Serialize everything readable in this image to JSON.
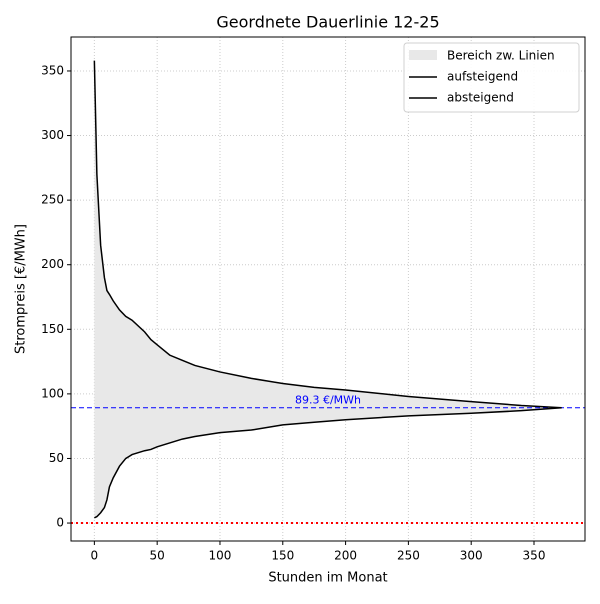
{
  "chart_data": {
    "type": "line",
    "title": "Geordnete Dauerlinie 12-25",
    "xlabel": "Stunden im Monat",
    "ylabel": "Strompreis [€/MWh]",
    "x": [
      0,
      2,
      5,
      8,
      10,
      12,
      15,
      20,
      25,
      30,
      40,
      45,
      50,
      60,
      70,
      80,
      100,
      125,
      150,
      175,
      200,
      250,
      300,
      340,
      372
    ],
    "series": [
      {
        "name": "aufsteigend",
        "color": "#000000",
        "values": [
          4,
          5,
          8,
          12,
          18,
          28,
          35,
          44,
          50,
          53,
          56,
          57,
          59,
          62,
          65,
          67,
          70,
          72,
          76,
          78,
          80,
          83,
          85,
          87,
          89.3
        ]
      },
      {
        "name": "absteigend",
        "color": "#000000",
        "values": [
          358,
          270,
          215,
          190,
          180,
          177,
          172,
          165,
          160,
          157,
          148,
          142,
          138,
          130,
          126,
          122,
          117,
          112,
          108,
          105,
          103,
          98,
          94,
          91,
          89.3
        ]
      }
    ],
    "fill_between": {
      "name": "Bereich zw. Linien",
      "color": "#e8e8e8"
    },
    "hlines": [
      {
        "value": 89.3,
        "label": "89.3 €/MWh",
        "color": "#0000ff",
        "style": "dashed"
      },
      {
        "value": 0,
        "color": "#ff0000",
        "style": "dotted"
      }
    ],
    "xlim": [
      -18.6,
      390.6
    ],
    "xticks": [
      0,
      50,
      100,
      150,
      200,
      250,
      300,
      350
    ],
    "ylim": [
      -13.9,
      376.3
    ],
    "yticks": [
      0,
      50,
      100,
      150,
      200,
      250,
      300,
      350
    ],
    "grid": true,
    "legend": "upper right"
  }
}
